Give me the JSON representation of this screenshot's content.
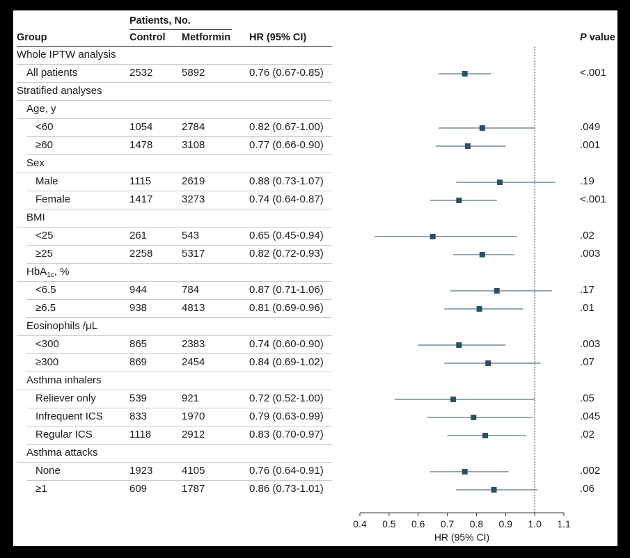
{
  "header": {
    "patients_group_label": "Patients, No.",
    "col_group": "Group",
    "col_control": "Control",
    "col_metformin": "Metformin",
    "col_hr": "HR (95% CI)",
    "col_p": "P value"
  },
  "rows": [
    {
      "label": "Whole IPTW analysis",
      "kind": "section"
    },
    {
      "label": "All patients",
      "control": "2532",
      "metformin": "5892",
      "hr_text": "0.76 (0.67-0.85)",
      "p": "<.001",
      "indent": 1
    },
    {
      "label": "Stratified analyses",
      "kind": "section"
    },
    {
      "label": "Age, y",
      "kind": "subsection"
    },
    {
      "label": "<60",
      "control": "1054",
      "metformin": "2784",
      "hr_text": "0.82 (0.67-1.00)",
      "p": ".049",
      "indent": 2
    },
    {
      "label": "≥60",
      "control": "1478",
      "metformin": "3108",
      "hr_text": "0.77 (0.66-0.90)",
      "p": ".001",
      "indent": 2
    },
    {
      "label": "Sex",
      "kind": "subsection"
    },
    {
      "label": "Male",
      "control": "1115",
      "metformin": "2619",
      "hr_text": "0.88 (0.73-1.07)",
      "p": ".19",
      "indent": 2
    },
    {
      "label": "Female",
      "control": "1417",
      "metformin": "3273",
      "hr_text": "0.74 (0.64-0.87)",
      "p": "<.001",
      "indent": 2
    },
    {
      "label": "BMI",
      "kind": "subsection"
    },
    {
      "label": "<25",
      "control": "261",
      "metformin": "543",
      "hr_text": "0.65 (0.45-0.94)",
      "p": ".02",
      "indent": 2
    },
    {
      "label": "≥25",
      "control": "2258",
      "metformin": "5317",
      "hr_text": "0.82 (0.72-0.93)",
      "p": ".003",
      "indent": 2
    },
    {
      "label": "HbA1c, %",
      "kind": "subsection",
      "html_sub": true
    },
    {
      "label": "<6.5",
      "control": "944",
      "metformin": "784",
      "hr_text": "0.87 (0.71-1.06)",
      "p": ".17",
      "indent": 2
    },
    {
      "label": "≥6.5",
      "control": "938",
      "metformin": "4813",
      "hr_text": "0.81 (0.69-0.96)",
      "p": ".01",
      "indent": 2
    },
    {
      "label": "Eosinophils /μL",
      "kind": "subsection"
    },
    {
      "label": "<300",
      "control": "865",
      "metformin": "2383",
      "hr_text": "0.74 (0.60-0.90)",
      "p": ".003",
      "indent": 2
    },
    {
      "label": "≥300",
      "control": "869",
      "metformin": "2454",
      "hr_text": "0.84 (0.69-1.02)",
      "p": ".07",
      "indent": 2
    },
    {
      "label": "Asthma inhalers",
      "kind": "subsection"
    },
    {
      "label": "Reliever only",
      "control": "539",
      "metformin": "921",
      "hr_text": "0.72 (0.52-1.00)",
      "p": ".05",
      "indent": 2
    },
    {
      "label": "Infrequent ICS",
      "control": "833",
      "metformin": "1970",
      "hr_text": "0.79 (0.63-0.99)",
      "p": ".045",
      "indent": 2
    },
    {
      "label": "Regular ICS",
      "control": "1118",
      "metformin": "2912",
      "hr_text": "0.83 (0.70-0.97)",
      "p": ".02",
      "indent": 2
    },
    {
      "label": "Asthma attacks",
      "kind": "subsection"
    },
    {
      "label": "None",
      "control": "1923",
      "metformin": "4105",
      "hr_text": "0.76 (0.64-0.91)",
      "p": ".002",
      "indent": 2
    },
    {
      "label": "≥1",
      "control": "609",
      "metformin": "1787",
      "hr_text": "0.86 (0.73-1.01)",
      "p": ".06",
      "indent": 2
    }
  ],
  "chart_data": {
    "type": "forest",
    "xlabel": "HR (95% CI)",
    "xlim": [
      0.4,
      1.1
    ],
    "xticks": [
      "0.4",
      "0.5",
      "0.6",
      "0.7",
      "0.8",
      "0.9",
      "1.0",
      "1.1"
    ],
    "reference_line": 1.0,
    "estimates": [
      {
        "group": "All patients",
        "hr": 0.76,
        "lo": 0.67,
        "hi": 0.85
      },
      {
        "group": "<60",
        "hr": 0.82,
        "lo": 0.67,
        "hi": 1.0
      },
      {
        "group": "≥60",
        "hr": 0.77,
        "lo": 0.66,
        "hi": 0.9
      },
      {
        "group": "Male",
        "hr": 0.88,
        "lo": 0.73,
        "hi": 1.07
      },
      {
        "group": "Female",
        "hr": 0.74,
        "lo": 0.64,
        "hi": 0.87
      },
      {
        "group": "<25",
        "hr": 0.65,
        "lo": 0.45,
        "hi": 0.94
      },
      {
        "group": "≥25",
        "hr": 0.82,
        "lo": 0.72,
        "hi": 0.93
      },
      {
        "group": "<6.5",
        "hr": 0.87,
        "lo": 0.71,
        "hi": 1.06
      },
      {
        "group": "≥6.5",
        "hr": 0.81,
        "lo": 0.69,
        "hi": 0.96
      },
      {
        "group": "<300",
        "hr": 0.74,
        "lo": 0.6,
        "hi": 0.9
      },
      {
        "group": "≥300",
        "hr": 0.84,
        "lo": 0.69,
        "hi": 1.02
      },
      {
        "group": "Reliever only",
        "hr": 0.72,
        "lo": 0.52,
        "hi": 1.0
      },
      {
        "group": "Infrequent ICS",
        "hr": 0.79,
        "lo": 0.63,
        "hi": 0.99
      },
      {
        "group": "Regular ICS",
        "hr": 0.83,
        "lo": 0.7,
        "hi": 0.97
      },
      {
        "group": "None",
        "hr": 0.76,
        "lo": 0.64,
        "hi": 0.91
      },
      {
        "group": "≥1",
        "hr": 0.86,
        "lo": 0.73,
        "hi": 1.01
      }
    ],
    "marker_color": "#2e4f5f"
  }
}
